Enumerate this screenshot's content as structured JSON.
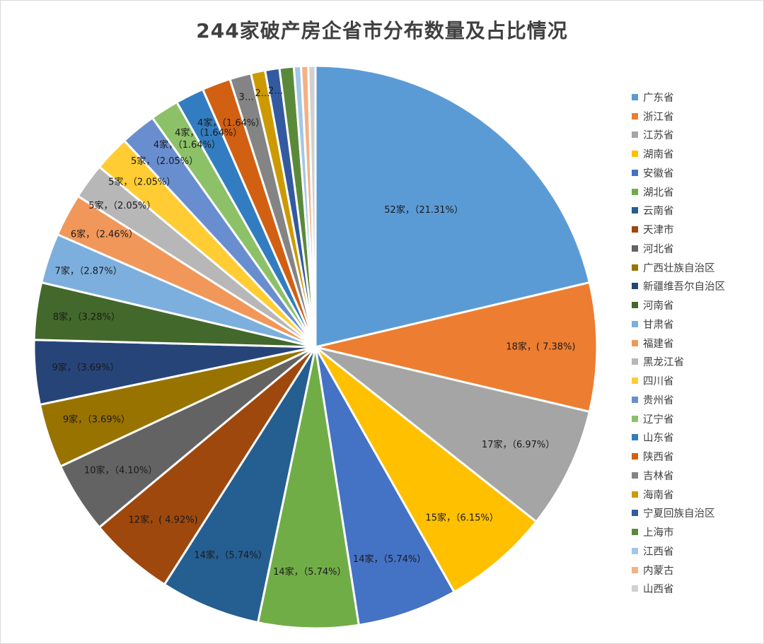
{
  "chart_data": {
    "type": "pie",
    "title": "244家破产房企省市分布数量及占比情况",
    "legend_position": "right",
    "slices": [
      {
        "name": "广东省",
        "value": 52,
        "label": "52家，（21.31%）",
        "color": "#5b9bd5"
      },
      {
        "name": "浙江省",
        "value": 18,
        "label": "18家，( 7.38%)",
        "color": "#ed7d31"
      },
      {
        "name": "江苏省",
        "value": 17,
        "label": "17家，（6.97%）",
        "color": "#a5a5a5"
      },
      {
        "name": "湖南省",
        "value": 15,
        "label": "15家，（6.15%）",
        "color": "#ffc000"
      },
      {
        "name": "安徽省",
        "value": 14,
        "label": "14家，（5.74%）",
        "color": "#4472c4"
      },
      {
        "name": "湖北省",
        "value": 14,
        "label": "14家，（5.74%）",
        "color": "#70ad47"
      },
      {
        "name": "云南省",
        "value": 14,
        "label": "14家，（5.74%）",
        "color": "#255e91"
      },
      {
        "name": "天津市",
        "value": 12,
        "label": "12家，( 4.92%)",
        "color": "#9e480e"
      },
      {
        "name": "河北省",
        "value": 10,
        "label": "10家，（4.10%）",
        "color": "#636363"
      },
      {
        "name": "广西壮族自治区",
        "value": 9,
        "label": "9家，（3.69%）",
        "color": "#997300"
      },
      {
        "name": "新疆维吾尔自治区",
        "value": 9,
        "label": "9家，（3.69%）",
        "color": "#264478"
      },
      {
        "name": "河南省",
        "value": 8,
        "label": "8家，（3.28%）",
        "color": "#43682b"
      },
      {
        "name": "甘肃省",
        "value": 7,
        "label": "7家，（2.87%）",
        "color": "#7cafdd"
      },
      {
        "name": "福建省",
        "value": 6,
        "label": "6家，（2.46%）",
        "color": "#f1975a"
      },
      {
        "name": "黑龙江省",
        "value": 5,
        "label": "5家，（2.05%）",
        "color": "#b7b7b7"
      },
      {
        "name": "四川省",
        "value": 5,
        "label": "5家，（2.05%）",
        "color": "#ffcd33"
      },
      {
        "name": "贵州省",
        "value": 5,
        "label": "5家，（2.05%）",
        "color": "#698ed0"
      },
      {
        "name": "辽宁省",
        "value": 4,
        "label": "4家，（1.64%）",
        "color": "#8cc168"
      },
      {
        "name": "山东省",
        "value": 4,
        "label": "4家，（1.64%）",
        "color": "#327dc2"
      },
      {
        "name": "陕西省",
        "value": 4,
        "label": "4家，（1.64%）",
        "color": "#d26012"
      },
      {
        "name": "吉林省",
        "value": 3,
        "label": "3…",
        "color": "#848484"
      },
      {
        "name": "海南省",
        "value": 2,
        "label": "2…",
        "color": "#cc9a00"
      },
      {
        "name": "宁夏回族自治区",
        "value": 2,
        "label": "2…",
        "color": "#335aa1"
      },
      {
        "name": "上海市",
        "value": 2,
        "label": "",
        "color": "#5a8a39"
      },
      {
        "name": "江西省",
        "value": 1,
        "label": "",
        "color": "#a2c6e8"
      },
      {
        "name": "内蒙古",
        "value": 1,
        "label": "",
        "color": "#f4b183"
      },
      {
        "name": "山西省",
        "value": 1,
        "label": "",
        "color": "#d0d0d0"
      }
    ]
  }
}
